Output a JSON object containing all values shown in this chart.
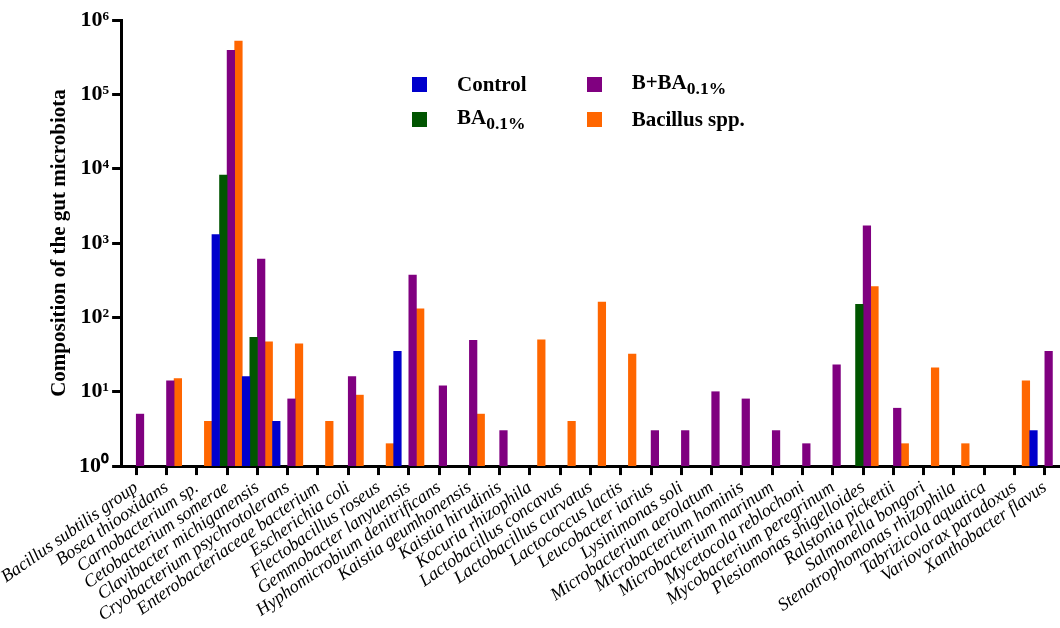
{
  "chart_data": {
    "type": "bar",
    "ylabel": "Composition of the gut microbiota",
    "categories": [
      "Bacillus subtilis group",
      "Bosea thiooxidans",
      "Carnobacterium sp.",
      "Cetobacterium somerae",
      "Clavibacter michiganensis",
      "Cryobacterium psychrotolerans",
      "Enterobacteriaceae bacterium",
      "Escherichia coli",
      "Flectobacillus roseus",
      "Gemmobacter lanyuensis",
      "Hyphomicrobium denitrificans",
      "Kaistia geumhonensis",
      "Kaistia hirudinis",
      "Kocuria rhizophila",
      "Lactobacillus concavus",
      "Lactobacillus curvatus",
      "Lactococcus lactis",
      "Leucobacter iarius",
      "Lysinimonas soli",
      "Microbacterium aerolatum",
      "Microbacterium hominis",
      "Microbacterium marinum",
      "Mycetocola reblochoni",
      "Mycobacterium peregrinum",
      "Plesiomonas shigelloides",
      "Ralstonia pickettii",
      "Salmonella bongori",
      "Stenotrophomonas rhizophila",
      "Tabrizicola aquatica",
      "Variovorax paradoxus",
      "Xanthobacter flavus"
    ],
    "series": [
      {
        "name": "Control",
        "color": "#0000cc",
        "values": [
          null,
          null,
          null,
          1300,
          16,
          4,
          null,
          null,
          null,
          35,
          null,
          null,
          null,
          null,
          null,
          null,
          null,
          null,
          null,
          null,
          null,
          null,
          null,
          null,
          null,
          null,
          null,
          null,
          null,
          null,
          3
        ]
      },
      {
        "name": "BA$_{0.1%}$",
        "color": "#005500",
        "values": [
          null,
          null,
          null,
          8200,
          54,
          null,
          null,
          null,
          null,
          null,
          null,
          null,
          null,
          null,
          null,
          null,
          null,
          null,
          null,
          null,
          null,
          null,
          null,
          null,
          150,
          null,
          null,
          null,
          null,
          null,
          null
        ]
      },
      {
        "name": "B+BA$_{0.1%}$",
        "color": "#800080",
        "values": [
          5,
          14,
          null,
          390000,
          610,
          8,
          null,
          16,
          null,
          370,
          12,
          49,
          3,
          null,
          null,
          null,
          null,
          3,
          3,
          10,
          8,
          3,
          2,
          23,
          1700,
          6,
          null,
          null,
          null,
          null,
          35
        ]
      },
      {
        "name": "Bacillus spp.",
        "color": "#ff6600",
        "values": [
          null,
          15,
          4,
          520000,
          47,
          44,
          4,
          9,
          2,
          130,
          null,
          5,
          null,
          50,
          4,
          160,
          32,
          null,
          null,
          null,
          null,
          null,
          null,
          null,
          260,
          2,
          21,
          2,
          null,
          14,
          null
        ]
      }
    ],
    "log": true,
    "ylim": [
      1,
      1000000
    ],
    "yticks": [
      {
        "value": 1,
        "label": "10⁰"
      },
      {
        "value": 10,
        "label": "10¹"
      },
      {
        "value": 100,
        "label": "10²"
      },
      {
        "value": 1000,
        "label": "10³"
      },
      {
        "value": 10000,
        "label": "10⁴"
      },
      {
        "value": 100000,
        "label": "10⁵"
      },
      {
        "value": 1000000,
        "label": "10⁶"
      }
    ],
    "grid": false,
    "legend": "top"
  }
}
